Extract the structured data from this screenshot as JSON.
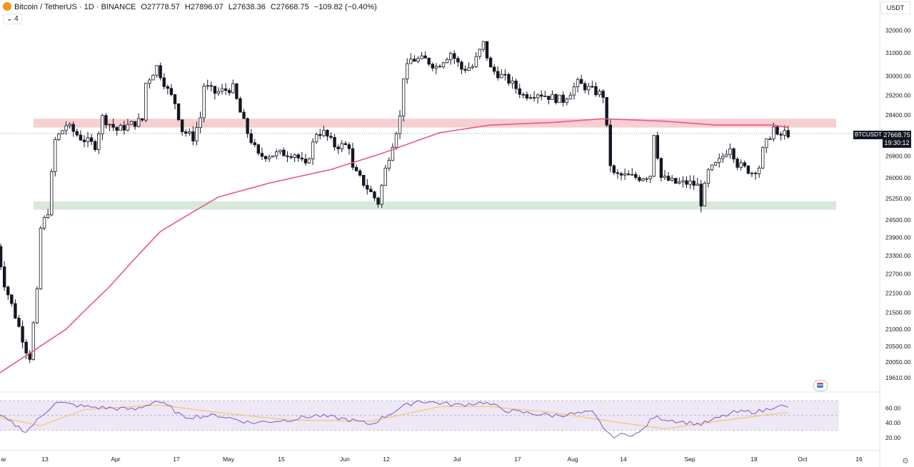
{
  "header": {
    "symbol": "Bitcoin / TetherUS · 1D · BINANCE",
    "open": "O27778.57",
    "high": "H27896.07",
    "low": "L27638.36",
    "close": "C27668.75",
    "change": "−109.82 (−0.40%)",
    "indicator_toggle": "4"
  },
  "currency_button": "USDT",
  "last_price_tag": {
    "symbol": "BTCUSDT",
    "price": "27668.75",
    "countdown": "19:30:12"
  },
  "colors": {
    "up": "#131722",
    "down": "#131722",
    "ma_line": "#e8578a",
    "resistance_zone": "#f4c7c9",
    "support_zone": "#d2e4d6",
    "rsi_line": "#7e57c2",
    "rsi_signal": "#f5c66a",
    "rsi_band": "#ede7f6"
  },
  "chart_data": [
    {
      "type": "candlestick",
      "title": "Bitcoin / TetherUS · 1D · BINANCE",
      "y_scale": "log",
      "ylim": [
        19300,
        32400
      ],
      "y_ticks": [
        "32000.00",
        "31000.00",
        "30000.00",
        "29200.00",
        "28400.00",
        "27600.00",
        "26800.00",
        "26000.00",
        "25250.00",
        "24500.00",
        "23900.00",
        "23300.00",
        "22700.00",
        "22100.00",
        "21500.00",
        "21000.00",
        "20500.00",
        "20050.00",
        "19610.00"
      ],
      "x_ticks": [
        "ar",
        "13",
        "Apr",
        "17",
        "May",
        "15",
        "Jun",
        "12",
        "Jul",
        "17",
        "Aug",
        "14",
        "Sep",
        "18",
        "Oct",
        "16"
      ],
      "x_range": [
        "2023-03-01",
        "2023-10-20"
      ],
      "zones": [
        {
          "name": "resistance",
          "from": 27900,
          "to": 28250
        },
        {
          "name": "support",
          "from": 24850,
          "to": 25150
        }
      ],
      "close_anchors": [
        [
          "2023-03-01",
          23600
        ],
        [
          "2023-03-03",
          22400
        ],
        [
          "2023-03-09",
          20400
        ],
        [
          "2023-03-10",
          20200
        ],
        [
          "2023-03-12",
          22100
        ],
        [
          "2023-03-13",
          24200
        ],
        [
          "2023-03-15",
          24800
        ],
        [
          "2023-03-17",
          27400
        ],
        [
          "2023-03-20",
          28000
        ],
        [
          "2023-03-24",
          27500
        ],
        [
          "2023-03-28",
          27200
        ],
        [
          "2023-03-30",
          28300
        ],
        [
          "2023-04-03",
          27800
        ],
        [
          "2023-04-10",
          28200
        ],
        [
          "2023-04-11",
          29700
        ],
        [
          "2023-04-14",
          30400
        ],
        [
          "2023-04-17",
          29400
        ],
        [
          "2023-04-19",
          28900
        ],
        [
          "2023-04-21",
          27800
        ],
        [
          "2023-04-24",
          27500
        ],
        [
          "2023-04-26",
          28300
        ],
        [
          "2023-04-27",
          29600
        ],
        [
          "2023-04-30",
          29300
        ],
        [
          "2023-05-05",
          29500
        ],
        [
          "2023-05-07",
          28500
        ],
        [
          "2023-05-09",
          27700
        ],
        [
          "2023-05-12",
          26800
        ],
        [
          "2023-05-18",
          26900
        ],
        [
          "2023-05-22",
          26900
        ],
        [
          "2023-05-25",
          26400
        ],
        [
          "2023-05-28",
          27700
        ],
        [
          "2023-05-30",
          27700
        ],
        [
          "2023-06-02",
          27200
        ],
        [
          "2023-06-06",
          27200
        ],
        [
          "2023-06-07",
          26300
        ],
        [
          "2023-06-10",
          25800
        ],
        [
          "2023-06-14",
          25100
        ],
        [
          "2023-06-16",
          26300
        ],
        [
          "2023-06-20",
          28300
        ],
        [
          "2023-06-21",
          30000
        ],
        [
          "2023-06-23",
          30700
        ],
        [
          "2023-06-27",
          30700
        ],
        [
          "2023-06-30",
          30400
        ],
        [
          "2023-07-04",
          31000
        ],
        [
          "2023-07-07",
          30300
        ],
        [
          "2023-07-10",
          30400
        ],
        [
          "2023-07-13",
          31400
        ],
        [
          "2023-07-15",
          30300
        ],
        [
          "2023-07-20",
          29800
        ],
        [
          "2023-07-24",
          29200
        ],
        [
          "2023-07-28",
          29300
        ],
        [
          "2023-08-01",
          29100
        ],
        [
          "2023-08-04",
          29000
        ],
        [
          "2023-08-08",
          29700
        ],
        [
          "2023-08-12",
          29400
        ],
        [
          "2023-08-15",
          29200
        ],
        [
          "2023-08-17",
          26500
        ],
        [
          "2023-08-18",
          26100
        ],
        [
          "2023-08-25",
          26000
        ],
        [
          "2023-08-28",
          26100
        ],
        [
          "2023-08-29",
          27700
        ],
        [
          "2023-08-31",
          26000
        ],
        [
          "2023-09-04",
          25800
        ],
        [
          "2023-09-08",
          25800
        ],
        [
          "2023-09-10",
          25700
        ],
        [
          "2023-09-11",
          25100
        ],
        [
          "2023-09-13",
          26200
        ],
        [
          "2023-09-16",
          26600
        ],
        [
          "2023-09-19",
          27200
        ],
        [
          "2023-09-21",
          26500
        ],
        [
          "2023-09-25",
          26200
        ],
        [
          "2023-09-27",
          26400
        ],
        [
          "2023-09-28",
          27000
        ],
        [
          "2023-10-01",
          27900
        ],
        [
          "2023-10-02",
          27500
        ],
        [
          "2023-10-04",
          27700
        ],
        [
          "2023-10-05",
          27669
        ]
      ],
      "ma_anchors": [
        [
          "2023-03-01",
          19700
        ],
        [
          "2023-03-10",
          20300
        ],
        [
          "2023-03-20",
          21000
        ],
        [
          "2023-04-01",
          22300
        ],
        [
          "2023-04-15",
          24100
        ],
        [
          "2023-05-01",
          25300
        ],
        [
          "2023-05-15",
          25800
        ],
        [
          "2023-06-01",
          26300
        ],
        [
          "2023-06-15",
          26900
        ],
        [
          "2023-07-01",
          27700
        ],
        [
          "2023-07-15",
          28000
        ],
        [
          "2023-08-01",
          28100
        ],
        [
          "2023-08-15",
          28250
        ],
        [
          "2023-09-01",
          28150
        ],
        [
          "2023-09-15",
          28000
        ],
        [
          "2023-10-01",
          28000
        ],
        [
          "2023-10-05",
          27900
        ]
      ],
      "last_price": 27668.75
    },
    {
      "type": "line",
      "name": "RSI",
      "ylim": [
        15,
        75
      ],
      "y_ticks": [
        "60.00",
        "40.00",
        "20.00"
      ],
      "bands": [
        30,
        50,
        70
      ],
      "rsi_anchors": [
        [
          "2023-03-01",
          52
        ],
        [
          "2023-03-05",
          40
        ],
        [
          "2023-03-09",
          28
        ],
        [
          "2023-03-13",
          48
        ],
        [
          "2023-03-17",
          68
        ],
        [
          "2023-03-25",
          62
        ],
        [
          "2023-04-01",
          60
        ],
        [
          "2023-04-08",
          58
        ],
        [
          "2023-04-14",
          70
        ],
        [
          "2023-04-18",
          60
        ],
        [
          "2023-04-21",
          48
        ],
        [
          "2023-05-01",
          50
        ],
        [
          "2023-05-10",
          40
        ],
        [
          "2023-05-20",
          44
        ],
        [
          "2023-05-28",
          50
        ],
        [
          "2023-06-05",
          45
        ],
        [
          "2023-06-12",
          38
        ],
        [
          "2023-06-20",
          60
        ],
        [
          "2023-06-25",
          70
        ],
        [
          "2023-07-06",
          64
        ],
        [
          "2023-07-13",
          68
        ],
        [
          "2023-07-20",
          56
        ],
        [
          "2023-08-01",
          50
        ],
        [
          "2023-08-12",
          54
        ],
        [
          "2023-08-17",
          22
        ],
        [
          "2023-08-25",
          26
        ],
        [
          "2023-08-29",
          48
        ],
        [
          "2023-09-05",
          42
        ],
        [
          "2023-09-11",
          38
        ],
        [
          "2023-09-20",
          54
        ],
        [
          "2023-09-28",
          56
        ],
        [
          "2023-10-02",
          64
        ],
        [
          "2023-10-05",
          60
        ]
      ],
      "signal_anchors": [
        [
          "2023-03-01",
          48
        ],
        [
          "2023-03-13",
          36
        ],
        [
          "2023-03-25",
          58
        ],
        [
          "2023-04-15",
          64
        ],
        [
          "2023-05-01",
          54
        ],
        [
          "2023-05-20",
          44
        ],
        [
          "2023-06-12",
          42
        ],
        [
          "2023-07-01",
          62
        ],
        [
          "2023-07-15",
          62
        ],
        [
          "2023-08-01",
          54
        ],
        [
          "2023-08-20",
          40
        ],
        [
          "2023-09-01",
          32
        ],
        [
          "2023-09-15",
          42
        ],
        [
          "2023-10-01",
          52
        ],
        [
          "2023-10-05",
          54
        ]
      ]
    }
  ]
}
